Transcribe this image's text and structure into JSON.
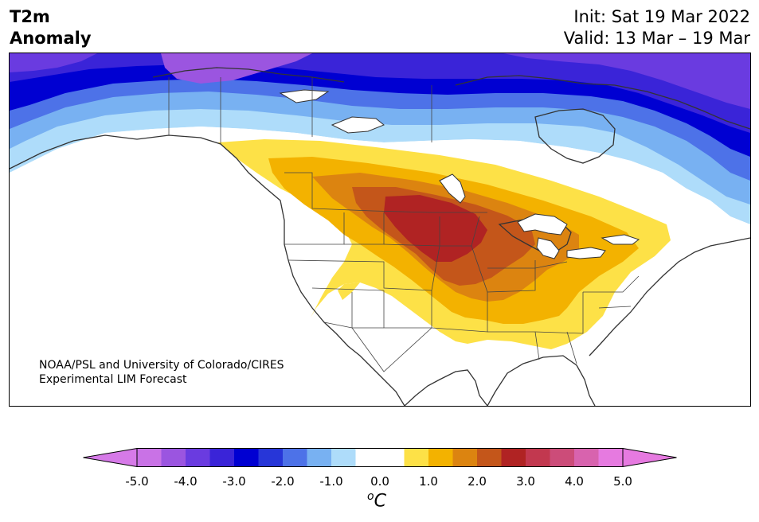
{
  "header": {
    "title_line1": "T2m",
    "title_line2": "Anomaly",
    "init_label": "Init: Sat 19 Mar 2022",
    "valid_label": "Valid: 13 Mar – 19 Mar"
  },
  "credit": {
    "line1": "NOAA/PSL and University of Colorado/CIRES",
    "line2": "Experimental LIM Forecast"
  },
  "colorbar": {
    "unit_base": "C",
    "unit_sup": "o",
    "ticks": [
      "-5.0",
      "-4.0",
      "-3.0",
      "-2.0",
      "-1.0",
      "0.0",
      "1.0",
      "2.0",
      "3.0",
      "4.0",
      "5.0"
    ],
    "tick_values": [
      -5,
      -4,
      -3,
      -2,
      -1,
      0,
      1,
      2,
      3,
      4,
      5
    ],
    "min": -5.0,
    "max": 5.0,
    "step": 0.5,
    "colors": [
      "#c972e6",
      "#9b55e0",
      "#6a3be0",
      "#3a24d8",
      "#0000d2",
      "#2736d8",
      "#4d72e8",
      "#78b1f2",
      "#aedcfa",
      "#ffffff",
      "#ffffff",
      "#fde147",
      "#f3b200",
      "#dc8410",
      "#c4561a",
      "#b02323",
      "#c2384f",
      "#cc4c79",
      "#d863ae",
      "#e67ae0"
    ],
    "under_color": "#d67ae8",
    "over_color": "#e67ae0"
  }
}
